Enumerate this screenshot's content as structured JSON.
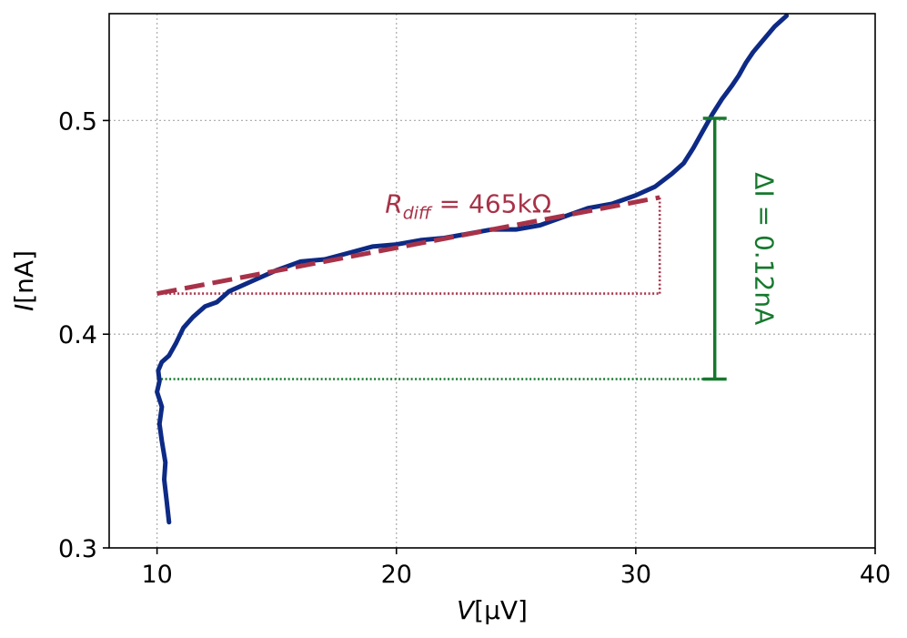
{
  "chart_data": {
    "type": "line",
    "xlabel_italic": "V",
    "xlabel_unit": "[μV]",
    "ylabel_italic": "I",
    "ylabel_unit": "[nA]",
    "xlim": [
      8,
      40
    ],
    "ylim": [
      0.3,
      0.55
    ],
    "x_ticks": [
      10,
      20,
      30,
      40
    ],
    "x_tick_labels": [
      "10",
      "20",
      "30",
      "40"
    ],
    "y_ticks": [
      0.3,
      0.4,
      0.5
    ],
    "y_tick_labels": [
      "0.3",
      "0.4",
      "0.5"
    ],
    "grid": true,
    "colors": {
      "data": "#0d2a85",
      "fit": "#a83248",
      "delta": "#16782e"
    },
    "series": [
      {
        "x": [
          10.5,
          10.4,
          10.3,
          10.35,
          10.2,
          10.1,
          10.2,
          10.0,
          10.1,
          10.05,
          10.2,
          10.5,
          10.8,
          11.1,
          11.5,
          12.0,
          12.5,
          13.0,
          14.0,
          15.0,
          16.0,
          17.0,
          18.0,
          19.0,
          20.0,
          21.0,
          22.0,
          23.0,
          24.0,
          25.0,
          26.0,
          27.0,
          28.0,
          29.0,
          30.0,
          30.8,
          31.5,
          32.0,
          32.4,
          32.8,
          33.2,
          33.6,
          34.0,
          34.3,
          34.6,
          34.9,
          35.2,
          35.5,
          35.8,
          36.1,
          36.3
        ],
        "y": [
          0.312,
          0.322,
          0.332,
          0.34,
          0.35,
          0.358,
          0.366,
          0.373,
          0.378,
          0.383,
          0.387,
          0.39,
          0.396,
          0.403,
          0.408,
          0.413,
          0.415,
          0.42,
          0.425,
          0.43,
          0.434,
          0.435,
          0.438,
          0.441,
          0.442,
          0.444,
          0.445,
          0.447,
          0.449,
          0.449,
          0.451,
          0.455,
          0.459,
          0.461,
          0.465,
          0.469,
          0.475,
          0.48,
          0.487,
          0.495,
          0.503,
          0.51,
          0.516,
          0.521,
          0.527,
          0.532,
          0.536,
          0.54,
          0.544,
          0.547,
          0.549
        ]
      }
    ],
    "fit_line": {
      "x": [
        10,
        31
      ],
      "y": [
        0.419,
        0.464
      ]
    },
    "fit_triangle": {
      "x_start": 10,
      "x_corner": 31,
      "y_low": 0.419,
      "y_high": 0.464
    },
    "fit_label_main": "R",
    "fit_label_sub": "diff",
    "fit_label_value": " = 465kΩ",
    "fit_label_pos": {
      "x": 23.0,
      "y": 0.457
    },
    "delta": {
      "x": 33.3,
      "y_low": 0.379,
      "y_high": 0.501,
      "hline_x_start": 10
    },
    "delta_label": "ΔI = 0.12nA",
    "delta_label_pos": {
      "x": 35.0,
      "y": 0.44
    }
  }
}
